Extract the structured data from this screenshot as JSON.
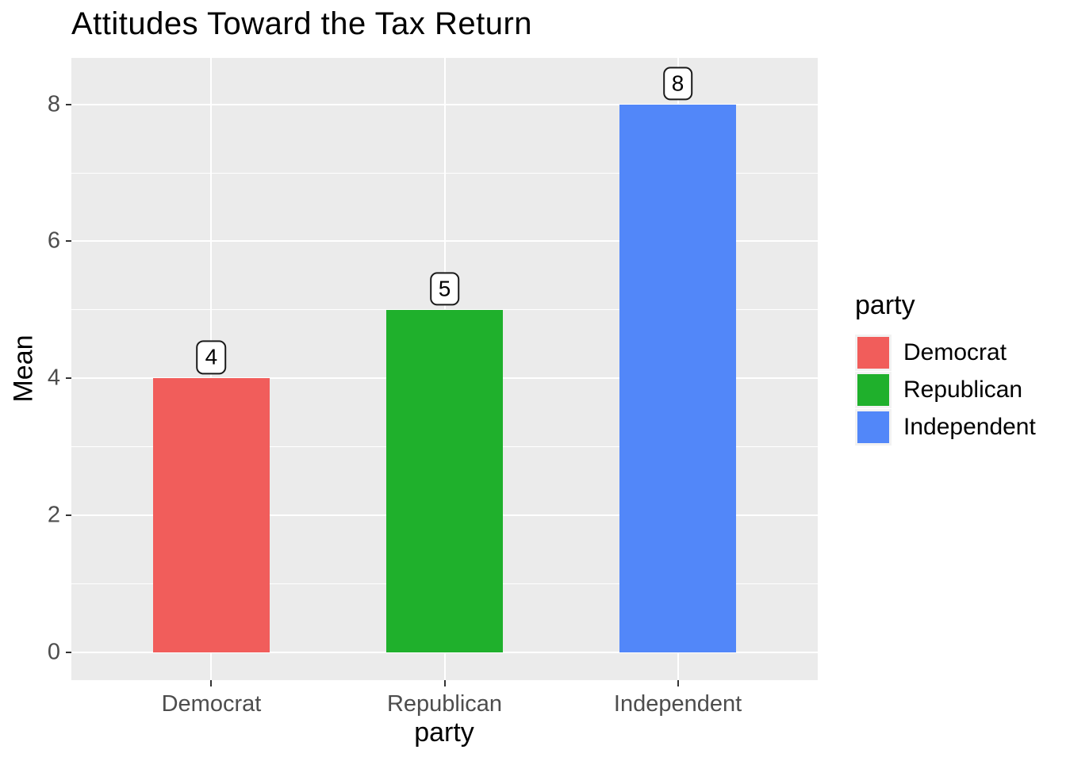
{
  "title": "Attitudes Toward the Tax Return",
  "chart_data": {
    "type": "bar",
    "title": "Attitudes Toward the Tax Return",
    "categories": [
      "Democrat",
      "Republican",
      "Independent"
    ],
    "values": [
      4,
      5,
      8
    ],
    "bar_labels": [
      "4",
      "5",
      "8"
    ],
    "xlabel": "party",
    "ylabel": "Mean",
    "ylim": [
      -0.41,
      8.68
    ],
    "yticks": [
      0,
      2,
      4,
      6,
      8
    ],
    "yticks_minor": [
      1,
      3,
      5,
      7
    ],
    "bar_width_fraction": 0.5,
    "grid": true,
    "colors": [
      "#F15D5B",
      "#1FB02C",
      "#5287F9"
    ],
    "panel_background": "#EBEBEB",
    "gridline_color": "#FFFFFF",
    "legend": {
      "title": "party",
      "position": "right",
      "entries": [
        {
          "label": "Democrat",
          "color": "#F15D5B"
        },
        {
          "label": "Republican",
          "color": "#1FB02C"
        },
        {
          "label": "Independent",
          "color": "#5287F9"
        }
      ]
    }
  }
}
